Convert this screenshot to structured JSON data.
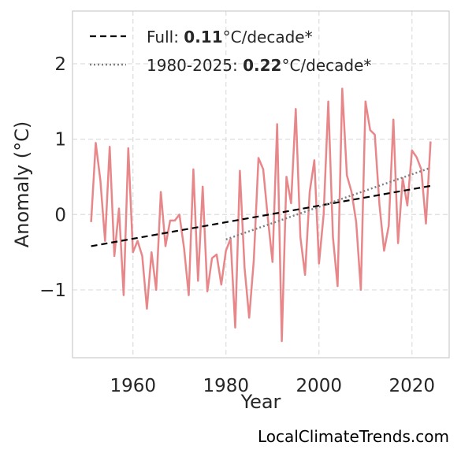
{
  "chart_data": {
    "type": "line",
    "xlabel": "Year",
    "ylabel": "Anomaly (°C)",
    "xlim": [
      1947,
      2028
    ],
    "ylim": [
      -1.9,
      2.7
    ],
    "xticks": [
      1960,
      1980,
      2000,
      2020
    ],
    "yticks": [
      -1,
      0,
      1,
      2
    ],
    "ytick_labels": [
      "−1",
      "0",
      "1",
      "2"
    ],
    "grid": true,
    "legend_position": "top-left",
    "x": [
      1951,
      1952,
      1953,
      1954,
      1955,
      1956,
      1957,
      1958,
      1959,
      1960,
      1961,
      1962,
      1963,
      1964,
      1965,
      1966,
      1967,
      1968,
      1969,
      1970,
      1971,
      1972,
      1973,
      1974,
      1975,
      1976,
      1977,
      1978,
      1979,
      1980,
      1981,
      1982,
      1983,
      1984,
      1985,
      1986,
      1987,
      1988,
      1989,
      1990,
      1991,
      1992,
      1993,
      1994,
      1995,
      1996,
      1997,
      1998,
      1999,
      2000,
      2001,
      2002,
      2003,
      2004,
      2005,
      2006,
      2007,
      2008,
      2009,
      2010,
      2011,
      2012,
      2013,
      2014,
      2015,
      2016,
      2017,
      2018,
      2019,
      2020,
      2021,
      2022,
      2023,
      2024
    ],
    "series": [
      {
        "values": [
          -0.1,
          0.95,
          0.45,
          -0.35,
          0.9,
          -0.55,
          0.08,
          -1.07,
          0.88,
          -0.5,
          -0.35,
          -0.55,
          -1.25,
          -0.5,
          -1.0,
          0.3,
          -0.42,
          -0.08,
          -0.08,
          0.0,
          -0.45,
          -1.07,
          0.6,
          -0.88,
          0.37,
          -1.02,
          -0.58,
          -0.53,
          -0.93,
          -0.48,
          -0.32,
          -1.5,
          0.58,
          -0.7,
          -1.37,
          -0.6,
          0.75,
          0.6,
          -0.05,
          -0.63,
          1.2,
          -1.68,
          0.5,
          0.15,
          1.4,
          -0.3,
          -0.8,
          0.3,
          0.72,
          -0.65,
          0.0,
          1.5,
          -0.3,
          -0.95,
          1.67,
          0.52,
          0.3,
          -0.1,
          -1.0,
          1.5,
          1.12,
          1.06,
          0.13,
          -0.48,
          -0.15,
          1.26,
          -0.38,
          0.48,
          0.12,
          0.85,
          0.76,
          0.6,
          -0.12,
          0.97
        ],
        "color": "#e8878a"
      }
    ],
    "trend_lines": [
      {
        "label_prefix": "Full: ",
        "label_value": "0.11",
        "label_suffix": "°C/decade*",
        "x": [
          1951,
          2024
        ],
        "y": [
          -0.42,
          0.38
        ],
        "color": "#000000",
        "style": "dashed"
      },
      {
        "label_prefix": "1980-2025: ",
        "label_value": "0.22",
        "label_suffix": "°C/decade*",
        "x": [
          1980,
          2024
        ],
        "y": [
          -0.33,
          0.62
        ],
        "color": "#808080",
        "style": "dotted"
      }
    ]
  },
  "watermark": "LocalClimateTrends.com"
}
